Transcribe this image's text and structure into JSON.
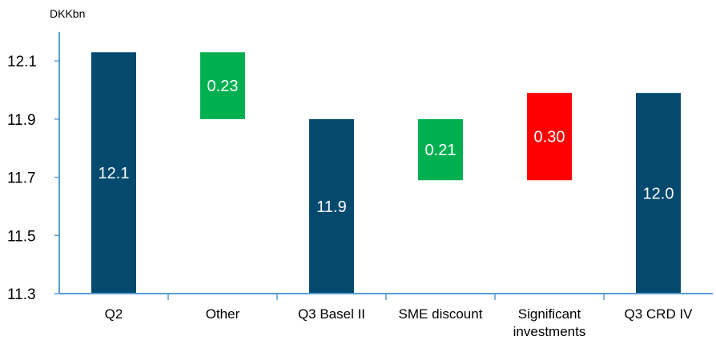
{
  "chart_data": {
    "type": "bar",
    "subtype": "waterfall",
    "unit_label": "DKKbn",
    "ylim": [
      11.3,
      12.2
    ],
    "yticks": [
      "11.3",
      "11.5",
      "11.7",
      "11.9",
      "12.1"
    ],
    "ytick_values": [
      11.3,
      11.5,
      11.7,
      11.9,
      12.1
    ],
    "grid": false,
    "bars": [
      {
        "category": [
          "Q2"
        ],
        "base": 11.3,
        "top": 12.13,
        "label": "12.1",
        "color": "#034A6E",
        "kind": "total"
      },
      {
        "category": [
          "Other"
        ],
        "base": 11.9,
        "top": 12.13,
        "label": "0.23",
        "color": "#00B050",
        "kind": "decrease"
      },
      {
        "category": [
          "Q3 Basel II"
        ],
        "base": 11.3,
        "top": 11.9,
        "label": "11.9",
        "color": "#034A6E",
        "kind": "total"
      },
      {
        "category": [
          "SME discount"
        ],
        "base": 11.69,
        "top": 11.9,
        "label": "0.21",
        "color": "#00B050",
        "kind": "decrease"
      },
      {
        "category": [
          "Significant",
          "investments"
        ],
        "base": 11.69,
        "top": 11.99,
        "label": "0.30",
        "color": "#FF0000",
        "kind": "increase"
      },
      {
        "category": [
          "Q3 CRD IV"
        ],
        "base": 11.3,
        "top": 11.99,
        "label": "12.0",
        "color": "#034A6E",
        "kind": "total"
      }
    ]
  }
}
